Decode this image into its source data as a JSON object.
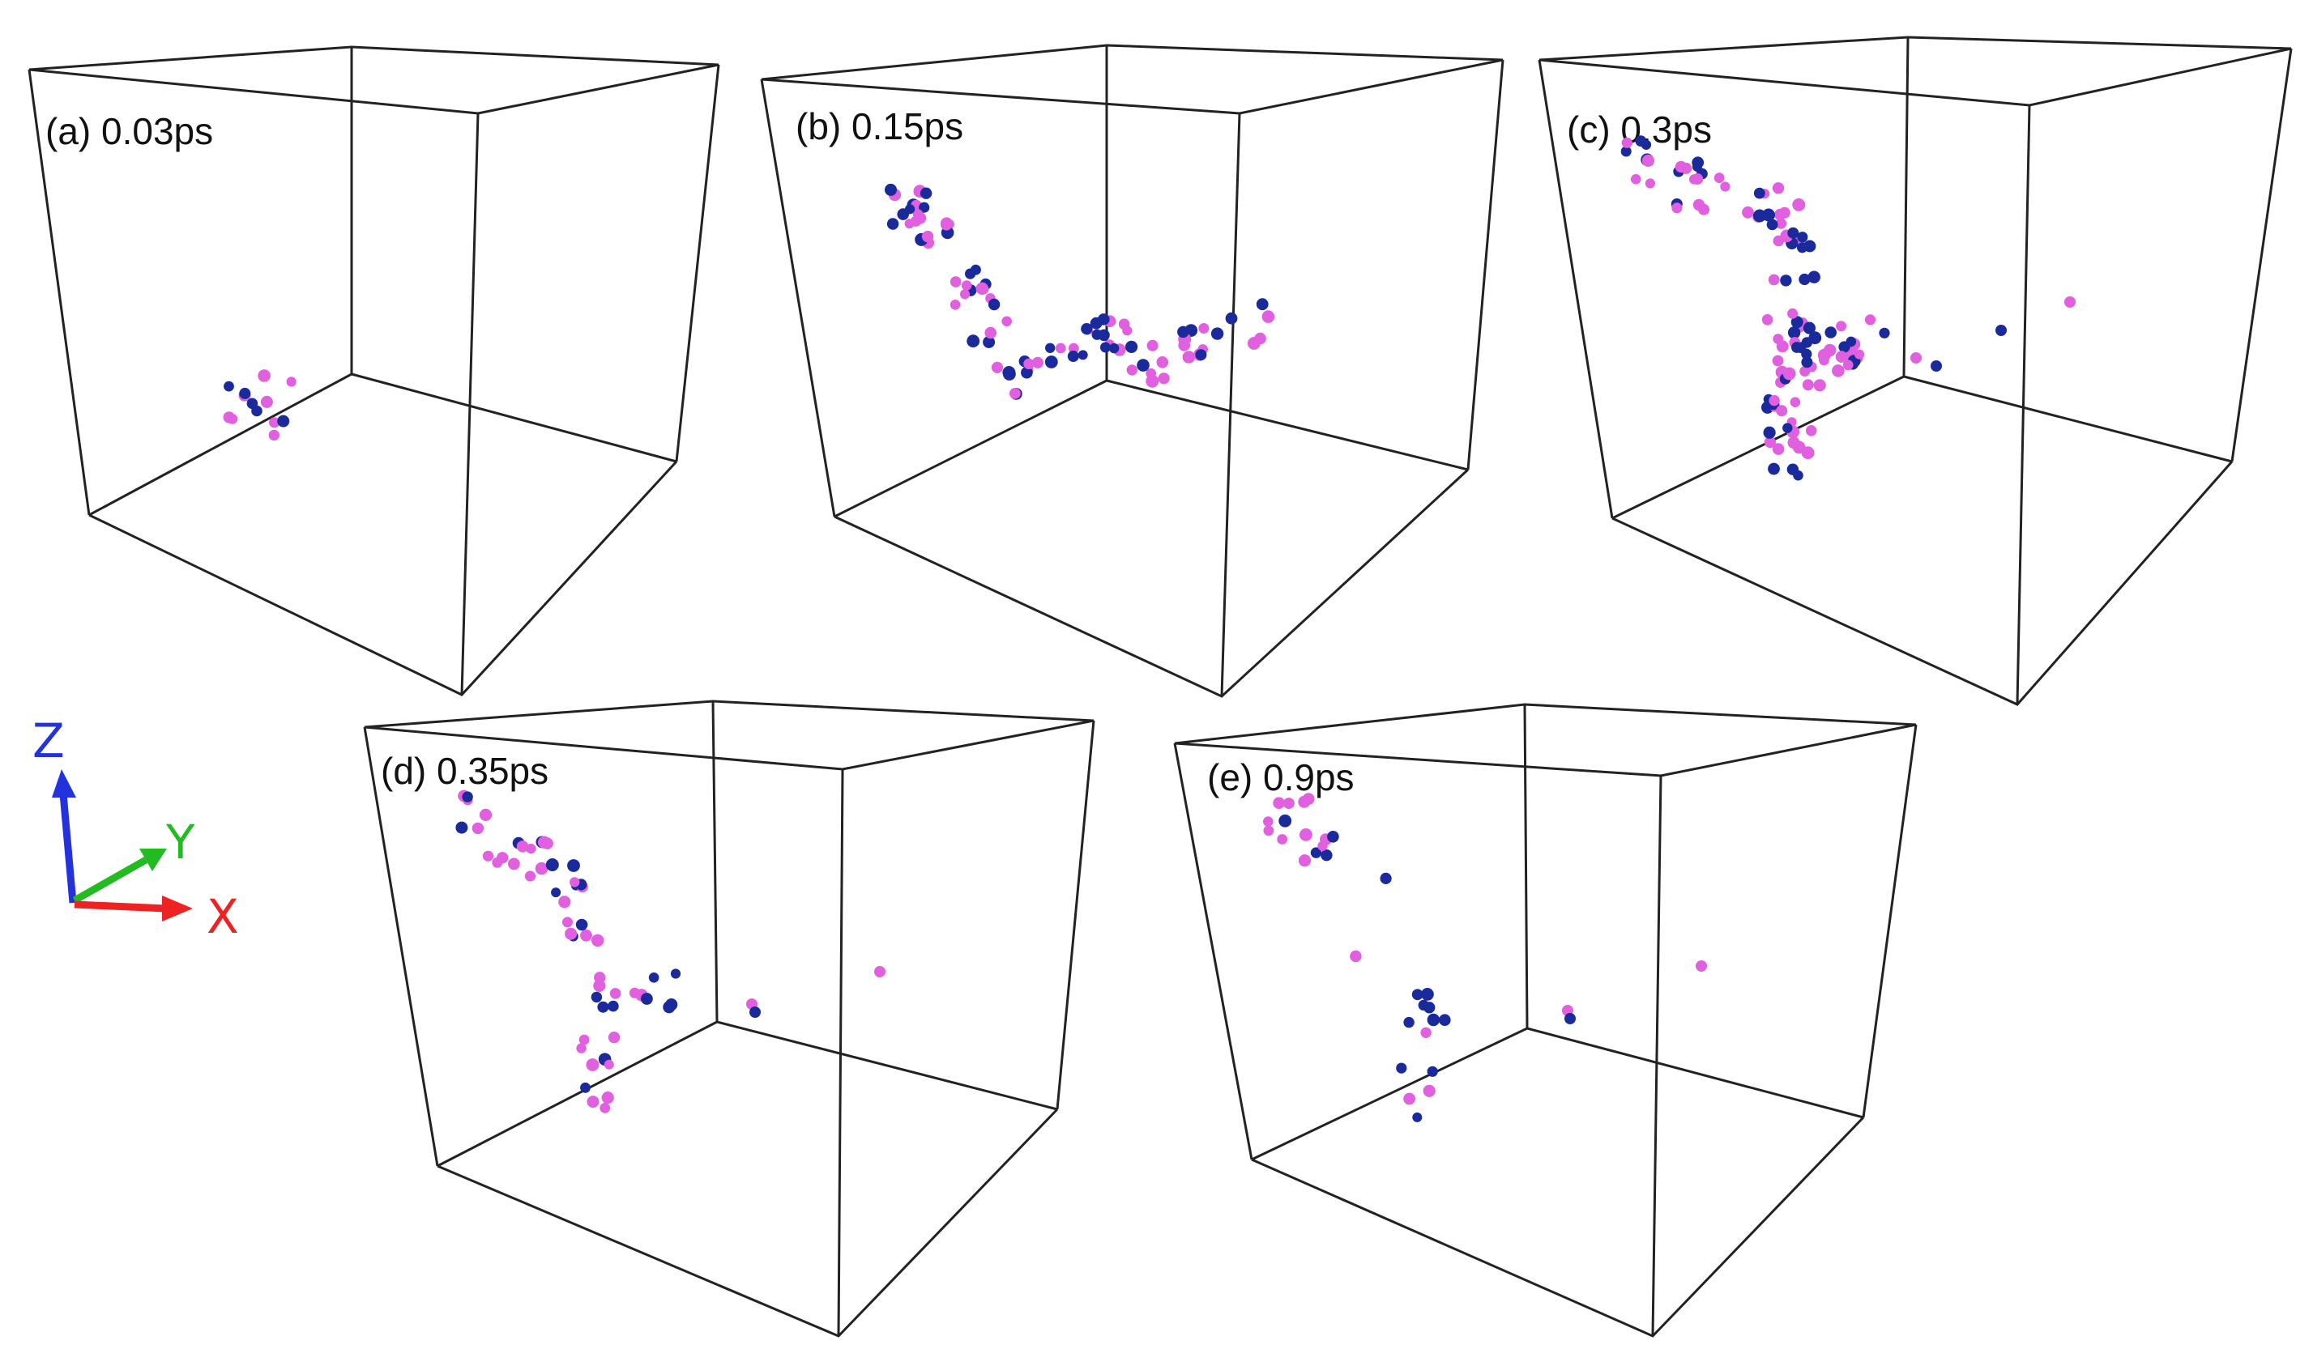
{
  "panels": [
    {
      "id": "a",
      "label": "(a) 0.03ps"
    },
    {
      "id": "b",
      "label": "(b) 0.15ps"
    },
    {
      "id": "c",
      "label": "(c) 0.3ps"
    },
    {
      "id": "d",
      "label": "(d) 0.35ps"
    },
    {
      "id": "e",
      "label": "(e) 0.9ps"
    }
  ],
  "axes": {
    "z": {
      "label": "Z",
      "color": "#2233dd"
    },
    "y": {
      "label": "Y",
      "color": "#22bb22"
    },
    "x": {
      "label": "X",
      "color": "#ee2222"
    }
  },
  "atom_colors": {
    "pink": "#e060e0",
    "blue": "#1a2a9a"
  }
}
